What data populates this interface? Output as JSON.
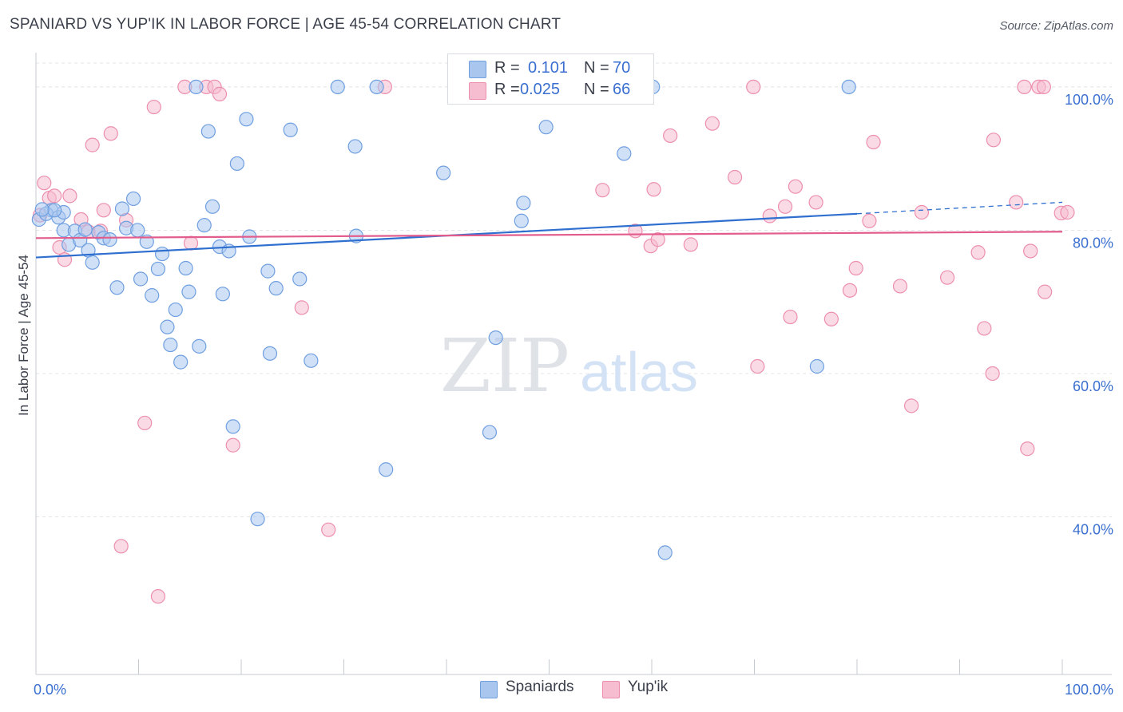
{
  "header": {
    "title": "SPANIARD VS YUP'IK IN LABOR FORCE | AGE 45-54 CORRELATION CHART",
    "source": "Source: ZipAtlas.com"
  },
  "legend": {
    "r_label": "R =",
    "n_label": "N =",
    "spaniards": {
      "r": "0.101",
      "n": "70"
    },
    "yupik": {
      "r": "0.025",
      "n": "66"
    }
  },
  "series_labels": {
    "spaniards": "Spaniards",
    "yupik": "Yup'ik"
  },
  "watermark": {
    "zip": "ZIP",
    "atlas": "atlas"
  },
  "colors": {
    "spaniards_fill": "#a9c6ee",
    "spaniards_stroke": "#6f9fe0",
    "spaniards_line": "#2f6fd0",
    "yupik_fill": "#f6bcd0",
    "yupik_stroke": "#ec8fae",
    "yupik_line": "#e25c8c",
    "tick_label": "#3a6fd0"
  },
  "chart_data": {
    "type": "scatter",
    "title": "SPANIARD VS YUP'IK IN LABOR FORCE | AGE 45-54 CORRELATION CHART",
    "xlabel": "",
    "ylabel": "In Labor Force | Age 45-54",
    "xlim": [
      0,
      100
    ],
    "ylim": [
      18,
      104
    ],
    "x_tick_labels": [
      "0.0%",
      "100.0%"
    ],
    "y_ticks": [
      40,
      60,
      80,
      100
    ],
    "y_tick_labels": [
      "40.0%",
      "60.0%",
      "80.0%",
      "100.0%"
    ],
    "series": [
      {
        "name": "Spaniards",
        "r": 0.101,
        "n": 70,
        "trend": {
          "x0": 0,
          "y0": 76.2,
          "x1": 80,
          "y1": 82.3,
          "dash_to_x": 100,
          "dash_to_y": 83.9
        },
        "points": [
          [
            0.3,
            81.5
          ],
          [
            1.5,
            82.8
          ],
          [
            2.2,
            81.8
          ],
          [
            1.0,
            82.3
          ],
          [
            2.7,
            82.5
          ],
          [
            2.7,
            80.0
          ],
          [
            3.2,
            78.0
          ],
          [
            3.8,
            79.9
          ],
          [
            4.3,
            78.6
          ],
          [
            4.8,
            80.1
          ],
          [
            5.1,
            77.2
          ],
          [
            5.5,
            75.5
          ],
          [
            6.1,
            79.7
          ],
          [
            6.6,
            78.9
          ],
          [
            7.2,
            78.7
          ],
          [
            7.9,
            72.0
          ],
          [
            8.4,
            83.0
          ],
          [
            8.8,
            80.3
          ],
          [
            9.5,
            84.4
          ],
          [
            9.9,
            80.0
          ],
          [
            10.2,
            73.2
          ],
          [
            10.8,
            78.4
          ],
          [
            11.3,
            70.9
          ],
          [
            11.9,
            74.6
          ],
          [
            12.3,
            76.7
          ],
          [
            12.8,
            66.5
          ],
          [
            13.1,
            64.0
          ],
          [
            13.6,
            68.9
          ],
          [
            14.1,
            61.6
          ],
          [
            14.6,
            74.7
          ],
          [
            14.9,
            71.4
          ],
          [
            15.6,
            100.0
          ],
          [
            15.9,
            63.8
          ],
          [
            16.4,
            80.7
          ],
          [
            16.8,
            93.8
          ],
          [
            17.2,
            83.3
          ],
          [
            17.9,
            77.7
          ],
          [
            18.2,
            71.1
          ],
          [
            18.8,
            77.1
          ],
          [
            19.2,
            52.6
          ],
          [
            19.6,
            89.3
          ],
          [
            20.5,
            95.5
          ],
          [
            20.8,
            79.1
          ],
          [
            21.6,
            39.7
          ],
          [
            22.6,
            74.3
          ],
          [
            22.8,
            62.8
          ],
          [
            23.4,
            71.9
          ],
          [
            24.8,
            94.0
          ],
          [
            25.7,
            73.2
          ],
          [
            26.8,
            61.8
          ],
          [
            29.4,
            100.0
          ],
          [
            31.1,
            91.7
          ],
          [
            31.2,
            79.2
          ],
          [
            33.2,
            100.0
          ],
          [
            34.1,
            46.6
          ],
          [
            39.7,
            88.0
          ],
          [
            41.4,
            100.0
          ],
          [
            44.2,
            51.8
          ],
          [
            44.8,
            65.0
          ],
          [
            47.3,
            81.3
          ],
          [
            47.5,
            83.8
          ],
          [
            49.7,
            94.4
          ],
          [
            52.2,
            100.0
          ],
          [
            57.3,
            90.7
          ],
          [
            60.1,
            100.0
          ],
          [
            61.3,
            35.0
          ],
          [
            76.1,
            61.0
          ],
          [
            79.2,
            100.0
          ],
          [
            1.8,
            82.8
          ],
          [
            0.6,
            82.9
          ]
        ]
      },
      {
        "name": "Yup'ik",
        "r": 0.025,
        "n": 66,
        "trend": {
          "x0": 0,
          "y0": 78.9,
          "x1": 100,
          "y1": 79.8
        },
        "points": [
          [
            0.4,
            82.1
          ],
          [
            0.8,
            86.6
          ],
          [
            1.3,
            84.5
          ],
          [
            1.8,
            84.8
          ],
          [
            2.3,
            77.6
          ],
          [
            2.8,
            75.9
          ],
          [
            3.3,
            84.8
          ],
          [
            4.4,
            81.5
          ],
          [
            5.1,
            79.8
          ],
          [
            5.5,
            91.9
          ],
          [
            6.3,
            79.9
          ],
          [
            6.6,
            82.8
          ],
          [
            7.3,
            93.5
          ],
          [
            8.3,
            35.9
          ],
          [
            8.8,
            81.4
          ],
          [
            10.6,
            53.1
          ],
          [
            11.5,
            97.2
          ],
          [
            11.9,
            28.9
          ],
          [
            14.5,
            100.0
          ],
          [
            15.1,
            78.2
          ],
          [
            16.6,
            100.0
          ],
          [
            17.4,
            100.0
          ],
          [
            17.9,
            99.0
          ],
          [
            19.2,
            50.0
          ],
          [
            25.9,
            69.2
          ],
          [
            28.5,
            38.2
          ],
          [
            34.0,
            100.0
          ],
          [
            48.9,
            100.0
          ],
          [
            55.2,
            85.6
          ],
          [
            58.4,
            79.9
          ],
          [
            59.9,
            77.8
          ],
          [
            60.2,
            85.7
          ],
          [
            60.6,
            78.7
          ],
          [
            61.8,
            93.2
          ],
          [
            63.8,
            78.0
          ],
          [
            65.9,
            94.9
          ],
          [
            68.1,
            87.4
          ],
          [
            69.9,
            100.0
          ],
          [
            70.3,
            61.0
          ],
          [
            71.5,
            82.0
          ],
          [
            73.0,
            83.3
          ],
          [
            73.5,
            67.9
          ],
          [
            74.0,
            86.1
          ],
          [
            76.0,
            83.9
          ],
          [
            77.5,
            67.6
          ],
          [
            79.3,
            71.6
          ],
          [
            79.9,
            74.7
          ],
          [
            81.2,
            81.3
          ],
          [
            81.6,
            92.3
          ],
          [
            84.2,
            72.2
          ],
          [
            85.3,
            55.5
          ],
          [
            86.3,
            82.5
          ],
          [
            88.8,
            73.4
          ],
          [
            91.8,
            76.9
          ],
          [
            92.4,
            66.3
          ],
          [
            93.3,
            92.6
          ],
          [
            93.2,
            60.0
          ],
          [
            95.5,
            83.9
          ],
          [
            96.3,
            100.0
          ],
          [
            96.6,
            49.5
          ],
          [
            96.9,
            77.1
          ],
          [
            97.7,
            100.0
          ],
          [
            98.2,
            100.0
          ],
          [
            98.3,
            71.4
          ],
          [
            99.9,
            82.4
          ],
          [
            100.5,
            82.5
          ]
        ]
      }
    ]
  }
}
